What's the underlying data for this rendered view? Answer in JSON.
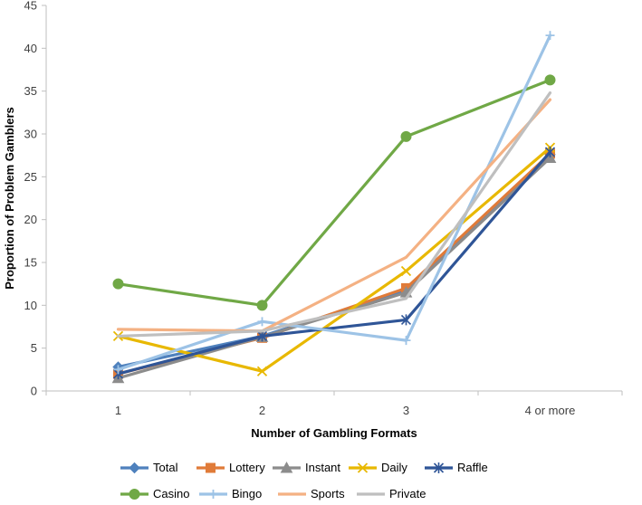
{
  "chart_data": {
    "type": "line",
    "title": "",
    "xlabel": "Number of Gambling Formats",
    "ylabel": "Proportion of Problem Gamblers",
    "categories": [
      "1",
      "2",
      "3",
      "4 or more"
    ],
    "ylim": [
      0,
      45
    ],
    "yticks": [
      0,
      5,
      10,
      15,
      20,
      25,
      30,
      35,
      40,
      45
    ],
    "grid": false,
    "legend_position": "bottom",
    "series": [
      {
        "name": "Total",
        "values": [
          2.8,
          6.4,
          11.7,
          27.6
        ],
        "color": "#4F81BD",
        "marker": "diamond"
      },
      {
        "name": "Lottery",
        "values": [
          2.0,
          6.2,
          12.0,
          27.7
        ],
        "color": "#E07B39",
        "marker": "square"
      },
      {
        "name": "Instant",
        "values": [
          1.5,
          6.3,
          11.5,
          27.2
        ],
        "color": "#8C8C8C",
        "marker": "triangle"
      },
      {
        "name": "Daily",
        "values": [
          6.4,
          2.3,
          14.0,
          28.4
        ],
        "color": "#E8B800",
        "marker": "x"
      },
      {
        "name": "Raffle",
        "values": [
          2.0,
          6.4,
          8.3,
          27.9
        ],
        "color": "#2F5597",
        "marker": "asterisk"
      },
      {
        "name": "Casino",
        "values": [
          12.5,
          10.0,
          29.7,
          36.3
        ],
        "color": "#70A846",
        "marker": "circle"
      },
      {
        "name": "Bingo",
        "values": [
          2.5,
          8.1,
          5.9,
          41.5
        ],
        "color": "#9DC3E6",
        "marker": "plus"
      },
      {
        "name": "Sports",
        "values": [
          7.2,
          7.0,
          15.6,
          34.0
        ],
        "color": "#F4B183",
        "marker": "none"
      },
      {
        "name": "Private",
        "values": [
          6.4,
          7.0,
          10.8,
          34.8
        ],
        "color": "#BFBFBF",
        "marker": "none"
      }
    ]
  }
}
